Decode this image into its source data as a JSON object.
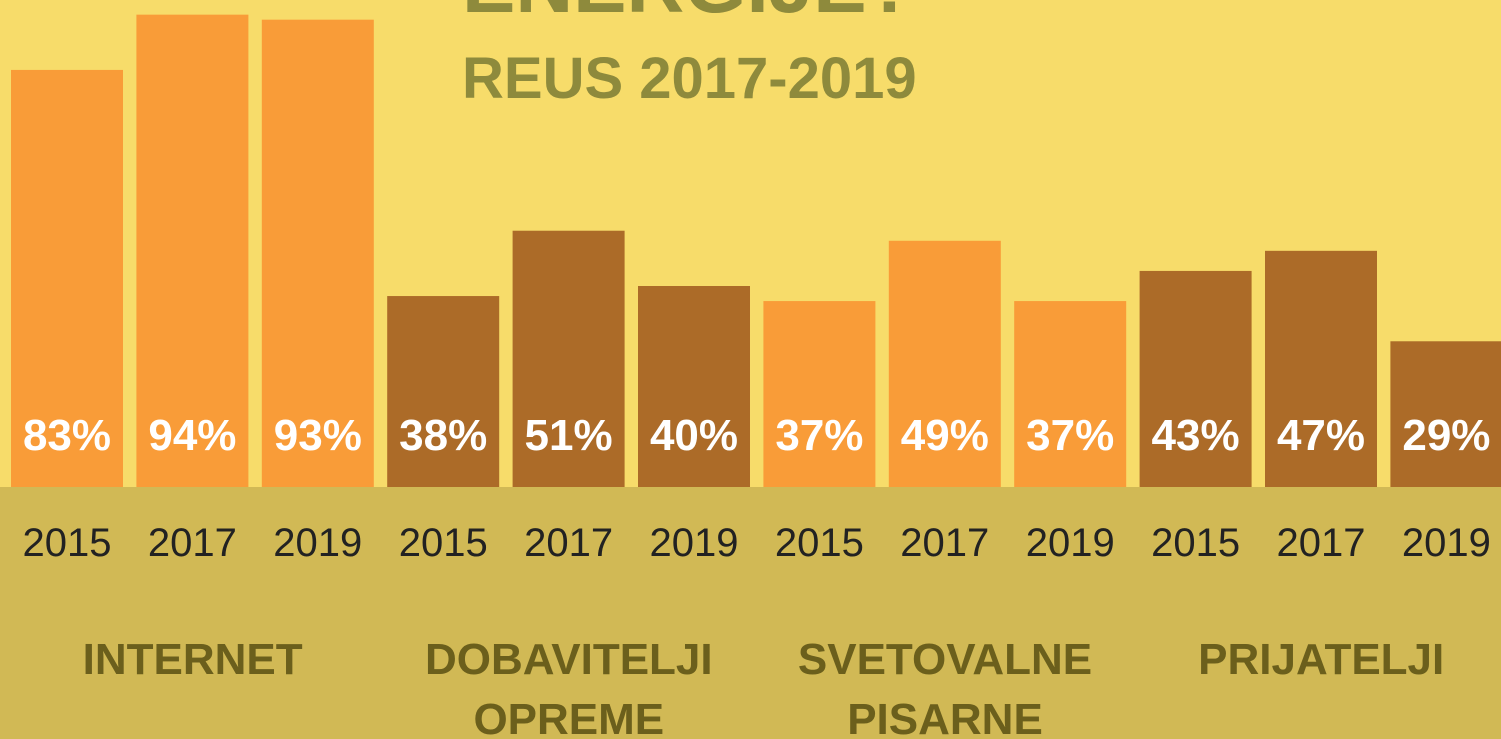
{
  "chart_data": {
    "type": "bar",
    "title": "ENERGIJE?",
    "subtitle": "REUS 2017-2019",
    "categories": [
      "2015",
      "2017",
      "2019"
    ],
    "series": [
      {
        "name": "INTERNET",
        "color": "#f99c38",
        "values": [
          83,
          94,
          93
        ],
        "value_labels": [
          "83%",
          "94%",
          "93%"
        ]
      },
      {
        "name": "DOBAVITELJI OPREME",
        "color": "#ac6b28",
        "values": [
          38,
          51,
          40
        ],
        "value_labels": [
          "38%",
          "51%",
          "40%"
        ]
      },
      {
        "name": "SVETOVALNE PISARNE",
        "color": "#f99c38",
        "values": [
          37,
          49,
          37
        ],
        "value_labels": [
          "37%",
          "49%",
          "37%"
        ]
      },
      {
        "name": "PRIJATELJI",
        "color": "#ac6b28",
        "values": [
          43,
          47,
          29
        ],
        "value_labels": [
          "43%",
          "47%",
          "29%"
        ]
      }
    ],
    "ylim": [
      0,
      100
    ]
  }
}
